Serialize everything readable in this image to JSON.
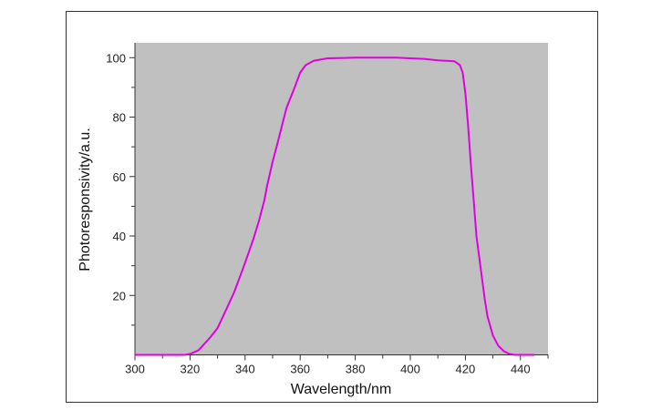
{
  "chart_data": {
    "type": "area",
    "xlabel": "Wavelength/nm",
    "ylabel": "Photoresponsivity/a.u.",
    "xlim": [
      300,
      450
    ],
    "ylim": [
      0,
      105
    ],
    "xticks": [
      300,
      320,
      340,
      360,
      380,
      400,
      420,
      440
    ],
    "yticks": [
      20,
      40,
      60,
      80,
      100
    ],
    "grid": false,
    "background_color": "#c0c0c0",
    "line_color": "#e000e0",
    "series": [
      {
        "x": [
          300,
          318,
          320,
          323,
          325,
          327,
          330,
          333,
          336,
          338,
          340,
          343,
          345,
          347,
          348,
          350,
          352,
          355,
          358,
          360,
          362,
          365,
          370,
          380,
          395,
          400,
          405,
          410,
          416,
          418,
          419,
          420,
          421,
          422,
          423,
          424,
          425,
          426,
          427,
          428,
          430,
          432,
          434,
          436,
          438,
          445
        ],
        "y": [
          0,
          0,
          0.3,
          1.5,
          3.5,
          5.5,
          9,
          15,
          21,
          26,
          31,
          39,
          45,
          52,
          57,
          65,
          72,
          83,
          90,
          95,
          97.5,
          99,
          99.8,
          100,
          100,
          99.8,
          99.6,
          99.1,
          98.8,
          97.5,
          95,
          88,
          77,
          64,
          52,
          40,
          33,
          26,
          19,
          13,
          6.5,
          3,
          1.2,
          0.3,
          0,
          0
        ]
      }
    ]
  }
}
